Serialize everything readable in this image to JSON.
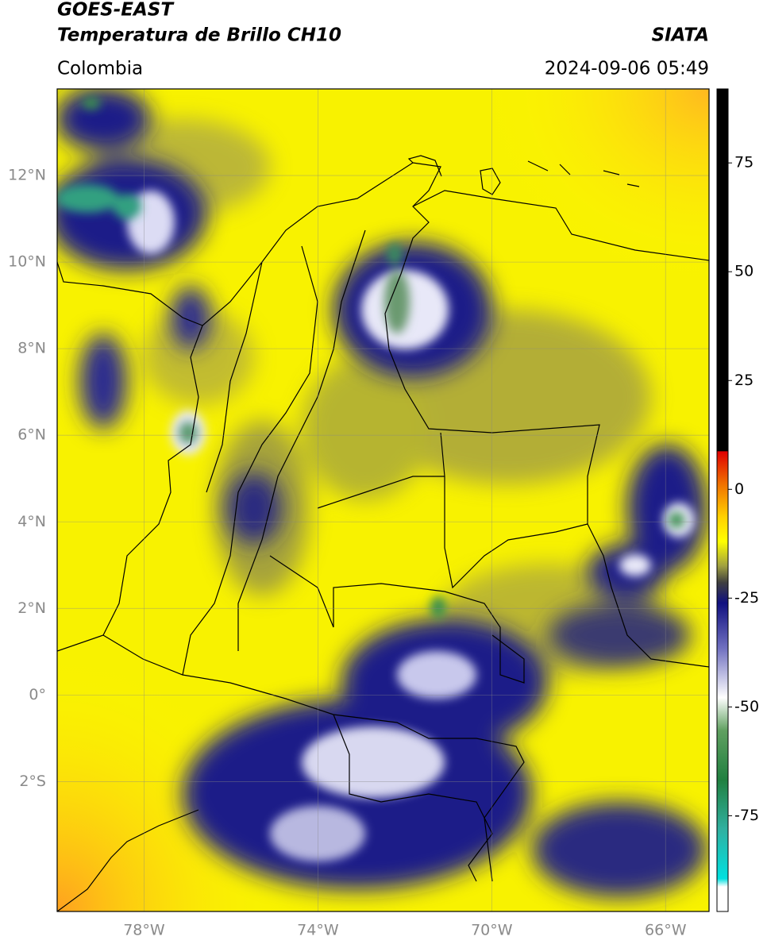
{
  "header": {
    "satellite": "GOES-EAST",
    "product": "Temperatura de Brillo CH10",
    "organization": "SIATA",
    "region": "Colombia",
    "datetime": "2024-09-06 05:49"
  },
  "map": {
    "lon_range": [
      -80,
      -65
    ],
    "lat_range": [
      -5,
      14
    ],
    "lon_ticks": [
      {
        "value": -78,
        "label": "78°W"
      },
      {
        "value": -74,
        "label": "74°W"
      },
      {
        "value": -70,
        "label": "70°W"
      },
      {
        "value": -66,
        "label": "66°W"
      }
    ],
    "lat_ticks": [
      {
        "value": 12,
        "label": "12°N"
      },
      {
        "value": 10,
        "label": "10°N"
      },
      {
        "value": 8,
        "label": "8°N"
      },
      {
        "value": 6,
        "label": "6°N"
      },
      {
        "value": 4,
        "label": "4°N"
      },
      {
        "value": 2,
        "label": "2°N"
      },
      {
        "value": 0,
        "label": "0°"
      },
      {
        "value": -2,
        "label": "2°S"
      }
    ]
  },
  "colorbar": {
    "lim": [
      -97,
      92
    ],
    "ticks": [
      75,
      50,
      25,
      0,
      -25,
      -50,
      -75
    ]
  }
}
